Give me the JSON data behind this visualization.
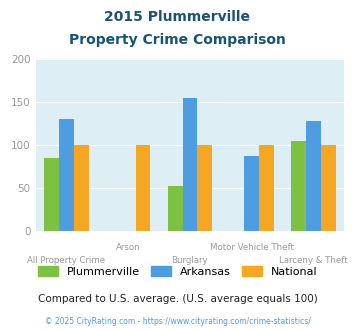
{
  "title_line1": "2015 Plummerville",
  "title_line2": "Property Crime Comparison",
  "categories": [
    "All Property Crime",
    "Arson",
    "Burglary",
    "Motor Vehicle Theft",
    "Larceny & Theft"
  ],
  "plummerville": [
    85,
    0,
    52,
    0,
    105
  ],
  "arkansas": [
    130,
    0,
    155,
    87,
    128
  ],
  "national": [
    100,
    100,
    100,
    100,
    100
  ],
  "colors": {
    "plummerville": "#7dc142",
    "arkansas": "#4e9de0",
    "national": "#f5a623"
  },
  "ylim": [
    0,
    200
  ],
  "yticks": [
    0,
    50,
    100,
    150,
    200
  ],
  "bg_color": "#ddeef5",
  "title_color": "#1a5276",
  "axis_label_color": "#999999",
  "footer_text": "Compared to U.S. average. (U.S. average equals 100)",
  "footer_color": "#222222",
  "copyright_text": "© 2025 CityRating.com - https://www.cityrating.com/crime-statistics/",
  "copyright_color": "#4e9de0",
  "legend_labels": [
    "Plummerville",
    "Arkansas",
    "National"
  ],
  "bar_width": 0.24,
  "figsize": [
    3.55,
    3.3
  ],
  "dpi": 100
}
